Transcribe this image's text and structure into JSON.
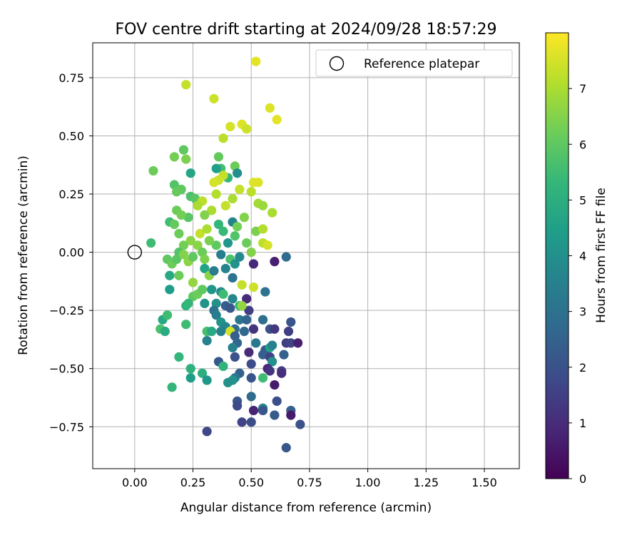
{
  "chart_data": {
    "type": "scatter",
    "title": "FOV centre drift starting at 2024/09/28 18:57:29",
    "xlabel": "Angular distance from reference (arcmin)",
    "ylabel": "Rotation from reference (arcmin)",
    "xlim": [
      -0.18,
      1.65
    ],
    "ylim": [
      -0.93,
      0.9
    ],
    "xticks": [
      "0.00",
      "0.25",
      "0.50",
      "0.75",
      "1.00",
      "1.25",
      "1.50"
    ],
    "yticks": [
      "−0.75",
      "−0.50",
      "−0.25",
      "0.00",
      "0.25",
      "0.50",
      "0.75"
    ],
    "grid": true,
    "legend": {
      "position": "top-right",
      "entries": [
        "Reference platepar"
      ]
    },
    "reference_point": {
      "name": "Reference platepar",
      "x": 0.0,
      "y": 0.0
    },
    "colorbar": {
      "label": "Hours from first FF file",
      "range": [
        0,
        8
      ],
      "ticks": [
        "0",
        "1",
        "2",
        "3",
        "4",
        "5",
        "6",
        "7"
      ],
      "colormap": "viridis"
    },
    "series": [
      {
        "color_by": "hours",
        "points": [
          [
            0.52,
            0.82,
            7.7
          ],
          [
            0.22,
            0.72,
            7.3
          ],
          [
            0.34,
            0.66,
            7.4
          ],
          [
            0.58,
            0.62,
            7.6
          ],
          [
            0.61,
            0.57,
            7.7
          ],
          [
            0.41,
            0.54,
            7.5
          ],
          [
            0.46,
            0.55,
            7.6
          ],
          [
            0.48,
            0.53,
            7.4
          ],
          [
            0.38,
            0.49,
            7.2
          ],
          [
            0.21,
            0.44,
            6.0
          ],
          [
            0.17,
            0.41,
            6.3
          ],
          [
            0.22,
            0.4,
            6.4
          ],
          [
            0.36,
            0.41,
            6.1
          ],
          [
            0.43,
            0.37,
            6.2
          ],
          [
            0.37,
            0.36,
            5.6
          ],
          [
            0.35,
            0.36,
            4.5
          ],
          [
            0.44,
            0.34,
            4.0
          ],
          [
            0.4,
            0.32,
            5.3
          ],
          [
            0.24,
            0.34,
            4.7
          ],
          [
            0.08,
            0.35,
            6.2
          ],
          [
            0.38,
            0.33,
            7.3
          ],
          [
            0.36,
            0.31,
            7.4
          ],
          [
            0.34,
            0.3,
            7.5
          ],
          [
            0.51,
            0.3,
            7.6
          ],
          [
            0.53,
            0.3,
            7.6
          ],
          [
            0.17,
            0.29,
            5.8
          ],
          [
            0.2,
            0.27,
            6.0
          ],
          [
            0.18,
            0.26,
            6.1
          ],
          [
            0.24,
            0.24,
            5.7
          ],
          [
            0.26,
            0.23,
            5.9
          ],
          [
            0.29,
            0.22,
            7.2
          ],
          [
            0.27,
            0.2,
            7.0
          ],
          [
            0.35,
            0.25,
            7.1
          ],
          [
            0.42,
            0.23,
            7.0
          ],
          [
            0.45,
            0.27,
            7.3
          ],
          [
            0.5,
            0.26,
            7.2
          ],
          [
            0.53,
            0.21,
            6.9
          ],
          [
            0.55,
            0.2,
            6.8
          ],
          [
            0.59,
            0.17,
            7.0
          ],
          [
            0.39,
            0.2,
            7.3
          ],
          [
            0.33,
            0.18,
            7.0
          ],
          [
            0.3,
            0.16,
            6.5
          ],
          [
            0.23,
            0.15,
            5.9
          ],
          [
            0.18,
            0.18,
            6.2
          ],
          [
            0.2,
            0.16,
            6.3
          ],
          [
            0.15,
            0.13,
            5.5
          ],
          [
            0.17,
            0.12,
            6.1
          ],
          [
            0.19,
            0.08,
            6.2
          ],
          [
            0.28,
            0.08,
            7.3
          ],
          [
            0.31,
            0.1,
            7.0
          ],
          [
            0.36,
            0.12,
            5.3
          ],
          [
            0.38,
            0.09,
            5.4
          ],
          [
            0.42,
            0.13,
            3.6
          ],
          [
            0.44,
            0.11,
            6.3
          ],
          [
            0.47,
            0.15,
            6.5
          ],
          [
            0.52,
            0.09,
            6.4
          ],
          [
            0.55,
            0.1,
            7.1
          ],
          [
            0.48,
            0.04,
            6.2
          ],
          [
            0.43,
            0.07,
            5.8
          ],
          [
            0.4,
            0.04,
            4.2
          ],
          [
            0.35,
            0.03,
            6.0
          ],
          [
            0.32,
            0.05,
            6.4
          ],
          [
            0.27,
            0.03,
            6.6
          ],
          [
            0.24,
            0.05,
            6.6
          ],
          [
            0.21,
            0.03,
            6.3
          ],
          [
            0.19,
            0.0,
            5.8
          ],
          [
            0.07,
            0.04,
            5.5
          ],
          [
            0.14,
            -0.03,
            6.0
          ],
          [
            0.16,
            -0.05,
            6.2
          ],
          [
            0.18,
            -0.03,
            5.9
          ],
          [
            0.21,
            -0.01,
            6.5
          ],
          [
            0.23,
            -0.04,
            6.6
          ],
          [
            0.25,
            -0.02,
            6.0
          ],
          [
            0.29,
            0.0,
            6.2
          ],
          [
            0.3,
            -0.03,
            6.4
          ],
          [
            0.37,
            -0.01,
            3.4
          ],
          [
            0.41,
            -0.03,
            5.7
          ],
          [
            0.43,
            -0.05,
            4.1
          ],
          [
            0.45,
            -0.02,
            3.8
          ],
          [
            0.5,
            0.0,
            6.5
          ],
          [
            0.55,
            0.04,
            7.2
          ],
          [
            0.57,
            0.03,
            7.5
          ],
          [
            0.51,
            -0.05,
            0.9
          ],
          [
            0.6,
            -0.04,
            0.7
          ],
          [
            0.65,
            -0.02,
            2.8
          ],
          [
            0.15,
            -0.1,
            4.8
          ],
          [
            0.15,
            -0.16,
            4.4
          ],
          [
            0.19,
            -0.1,
            6.2
          ],
          [
            0.25,
            -0.13,
            6.7
          ],
          [
            0.3,
            -0.07,
            4.6
          ],
          [
            0.32,
            -0.1,
            6.6
          ],
          [
            0.34,
            -0.08,
            3.4
          ],
          [
            0.39,
            -0.07,
            3.6
          ],
          [
            0.42,
            -0.11,
            3.0
          ],
          [
            0.46,
            -0.14,
            7.3
          ],
          [
            0.51,
            -0.15,
            7.4
          ],
          [
            0.56,
            -0.17,
            3.0
          ],
          [
            0.25,
            -0.19,
            6.0
          ],
          [
            0.27,
            -0.18,
            6.2
          ],
          [
            0.29,
            -0.16,
            6.0
          ],
          [
            0.33,
            -0.16,
            4.2
          ],
          [
            0.37,
            -0.17,
            3.9
          ],
          [
            0.38,
            -0.18,
            5.5
          ],
          [
            0.42,
            -0.2,
            3.7
          ],
          [
            0.48,
            -0.2,
            1.0
          ],
          [
            0.49,
            -0.25,
            1.5
          ],
          [
            0.22,
            -0.23,
            5.2
          ],
          [
            0.23,
            -0.22,
            5.3
          ],
          [
            0.3,
            -0.22,
            4.1
          ],
          [
            0.35,
            -0.22,
            4.0
          ],
          [
            0.39,
            -0.23,
            2.4
          ],
          [
            0.41,
            -0.24,
            2.2
          ],
          [
            0.45,
            -0.23,
            5.3
          ],
          [
            0.46,
            -0.23,
            6.7
          ],
          [
            0.12,
            -0.29,
            4.8
          ],
          [
            0.14,
            -0.27,
            5.5
          ],
          [
            0.22,
            -0.31,
            5.5
          ],
          [
            0.34,
            -0.25,
            3.0
          ],
          [
            0.35,
            -0.27,
            3.4
          ],
          [
            0.37,
            -0.3,
            4.1
          ],
          [
            0.39,
            -0.32,
            3.7
          ],
          [
            0.43,
            -0.33,
            2.8
          ],
          [
            0.45,
            -0.29,
            3.2
          ],
          [
            0.48,
            -0.29,
            2.6
          ],
          [
            0.51,
            -0.33,
            1.2
          ],
          [
            0.55,
            -0.29,
            2.9
          ],
          [
            0.58,
            -0.33,
            2.0
          ],
          [
            0.6,
            -0.33,
            1.3
          ],
          [
            0.66,
            -0.34,
            1.5
          ],
          [
            0.67,
            -0.3,
            2.1
          ],
          [
            0.11,
            -0.33,
            5.7
          ],
          [
            0.13,
            -0.34,
            4.9
          ],
          [
            0.31,
            -0.34,
            5.6
          ],
          [
            0.33,
            -0.34,
            4.8
          ],
          [
            0.37,
            -0.34,
            3.5
          ],
          [
            0.41,
            -0.34,
            7.5
          ],
          [
            0.43,
            -0.36,
            2.4
          ],
          [
            0.44,
            -0.39,
            2.6
          ],
          [
            0.47,
            -0.34,
            2.7
          ],
          [
            0.49,
            -0.43,
            1.0
          ],
          [
            0.52,
            -0.39,
            3.2
          ],
          [
            0.56,
            -0.42,
            2.3
          ],
          [
            0.58,
            -0.41,
            4.5
          ],
          [
            0.59,
            -0.4,
            3.6
          ],
          [
            0.64,
            -0.44,
            2.5
          ],
          [
            0.65,
            -0.39,
            1.4
          ],
          [
            0.67,
            -0.39,
            1.6
          ],
          [
            0.7,
            -0.39,
            0.7
          ],
          [
            0.31,
            -0.38,
            3.6
          ],
          [
            0.42,
            -0.41,
            3.5
          ],
          [
            0.43,
            -0.45,
            2.0
          ],
          [
            0.55,
            -0.44,
            2.4
          ],
          [
            0.58,
            -0.45,
            1.6
          ],
          [
            0.59,
            -0.47,
            4.0
          ],
          [
            0.19,
            -0.45,
            5.3
          ],
          [
            0.36,
            -0.47,
            2.2
          ],
          [
            0.38,
            -0.49,
            5.2
          ],
          [
            0.45,
            -0.52,
            2.5
          ],
          [
            0.5,
            -0.48,
            1.8
          ],
          [
            0.57,
            -0.5,
            0.9
          ],
          [
            0.58,
            -0.51,
            1.2
          ],
          [
            0.63,
            -0.51,
            1.4
          ],
          [
            0.63,
            -0.52,
            1.1
          ],
          [
            0.24,
            -0.5,
            5.1
          ],
          [
            0.29,
            -0.52,
            5.0
          ],
          [
            0.24,
            -0.54,
            4.4
          ],
          [
            0.31,
            -0.55,
            4.2
          ],
          [
            0.43,
            -0.54,
            3.2
          ],
          [
            0.42,
            -0.55,
            4.1
          ],
          [
            0.4,
            -0.56,
            4.0
          ],
          [
            0.5,
            -0.54,
            2.1
          ],
          [
            0.55,
            -0.54,
            5.5
          ],
          [
            0.6,
            -0.57,
            0.6
          ],
          [
            0.16,
            -0.58,
            5.3
          ],
          [
            0.5,
            -0.62,
            2.8
          ],
          [
            0.44,
            -0.64,
            2.1
          ],
          [
            0.44,
            -0.66,
            1.8
          ],
          [
            0.51,
            -0.68,
            0.8
          ],
          [
            0.55,
            -0.67,
            3.7
          ],
          [
            0.55,
            -0.68,
            2.1
          ],
          [
            0.61,
            -0.64,
            1.9
          ],
          [
            0.67,
            -0.68,
            2.4
          ],
          [
            0.67,
            -0.7,
            0.6
          ],
          [
            0.6,
            -0.7,
            2.3
          ],
          [
            0.46,
            -0.73,
            1.6
          ],
          [
            0.5,
            -0.73,
            1.9
          ],
          [
            0.71,
            -0.74,
            2.0
          ],
          [
            0.31,
            -0.77,
            1.7
          ],
          [
            0.65,
            -0.84,
            2.2
          ]
        ]
      }
    ]
  }
}
